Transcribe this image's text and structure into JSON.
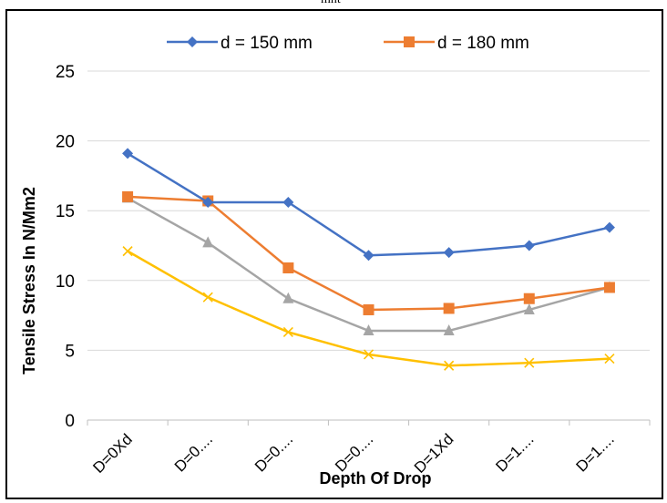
{
  "page_header_fragment": "mnt",
  "chart_data": {
    "type": "line",
    "title": "",
    "xlabel": "Depth Of Drop",
    "ylabel": "Tensile Stress  In N/Mm2",
    "categories": [
      "D=0Xd",
      "D=0....",
      "D=0....",
      "D=0....",
      "D=1Xd",
      "D=1....",
      "D=1...."
    ],
    "ylim": [
      0,
      25
    ],
    "yticks": [
      0,
      5,
      10,
      15,
      20,
      25
    ],
    "grid": "horizontal",
    "legend_position": "top",
    "series": [
      {
        "name": "d = 150 mm",
        "color": "#4472C4",
        "marker": "diamond",
        "values": [
          19.1,
          15.6,
          15.6,
          11.8,
          12.0,
          12.5,
          13.8
        ]
      },
      {
        "name": "d = 180 mm",
        "color": "#ED7D31",
        "marker": "square",
        "values": [
          16.0,
          15.7,
          10.9,
          7.9,
          8.0,
          8.7,
          9.5
        ]
      },
      {
        "name": "",
        "color": "#A5A5A5",
        "marker": "triangle",
        "values": [
          15.9,
          12.7,
          8.7,
          6.4,
          6.4,
          7.9,
          9.5
        ]
      },
      {
        "name": "",
        "color": "#FFC000",
        "marker": "x",
        "values": [
          12.1,
          8.8,
          6.3,
          4.7,
          3.9,
          4.1,
          4.4
        ]
      }
    ]
  }
}
